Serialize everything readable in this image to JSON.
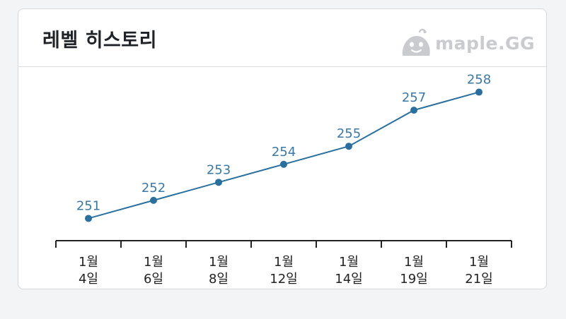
{
  "header": {
    "title": "레벨 히스토리",
    "logo_text": "maple.GG",
    "logo_icon": "slime-mascot-icon"
  },
  "colors": {
    "line": "#2a6f9e",
    "point": "#2a6f9e",
    "label": "#3a78a6",
    "axis": "#222222"
  },
  "chart_data": {
    "type": "line",
    "title": "",
    "xlabel": "",
    "ylabel": "",
    "categories": [
      {
        "month": "1월",
        "day": "4일"
      },
      {
        "month": "1월",
        "day": "6일"
      },
      {
        "month": "1월",
        "day": "8일"
      },
      {
        "month": "1월",
        "day": "12일"
      },
      {
        "month": "1월",
        "day": "14일"
      },
      {
        "month": "1월",
        "day": "19일"
      },
      {
        "month": "1월",
        "day": "21일"
      }
    ],
    "values": [
      251,
      252,
      253,
      254,
      255,
      257,
      258
    ],
    "data_labels": [
      "251",
      "252",
      "253",
      "254",
      "255",
      "257",
      "258"
    ],
    "ylim": [
      250,
      259
    ],
    "grid": false,
    "legend": "none"
  }
}
